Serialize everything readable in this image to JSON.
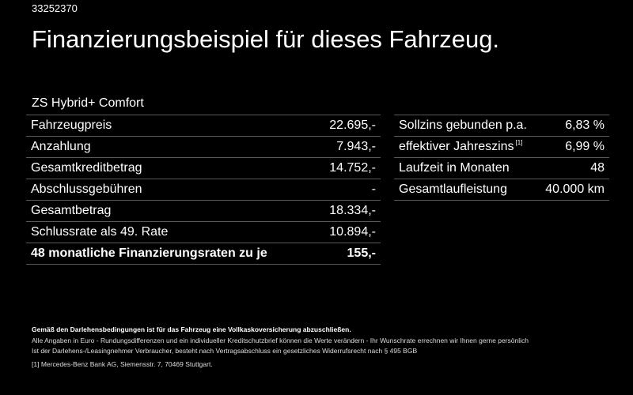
{
  "header": {
    "id": "33252370",
    "title": "Finanzierungsbeispiel für dieses Fahrzeug.",
    "model": "ZS Hybrid+ Comfort"
  },
  "left_table": [
    {
      "label": "Fahrzeugpreis",
      "value": "22.695,-"
    },
    {
      "label": "Anzahlung",
      "value": "7.943,-"
    },
    {
      "label": "Gesamtkreditbetrag",
      "value": "14.752,-"
    },
    {
      "label": "Abschlussgebühren",
      "value": "-"
    },
    {
      "label": "Gesamtbetrag",
      "value": "18.334,-"
    },
    {
      "label": "Schlussrate als 49. Rate",
      "value": "10.894,-"
    },
    {
      "label": "48 monatliche Finanzierungsraten zu je",
      "value": "155,-"
    }
  ],
  "right_table": [
    {
      "label": "Sollzins gebunden p.a.",
      "sup": "",
      "value": "6,83 %"
    },
    {
      "label": "effektiver Jahreszins",
      "sup": "[1]",
      "value": "6,99 %"
    },
    {
      "label": "Laufzeit in Monaten",
      "sup": "",
      "value": "48"
    },
    {
      "label": "Gesamtlaufleistung",
      "sup": "",
      "value": "40.000 km"
    }
  ],
  "footer": {
    "bold_line": "Gemäß den Darlehensbedingungen ist für das Fahrzeug eine Vollkaskoversicherung abzuschließen.",
    "line1": "Alle Angaben in Euro - Rundungsdifferenzen und ein individueller Kreditschutzbrief können die Werte verändern - Ihr Wunschrate errechnen wir Ihnen gerne persönlich",
    "line2": "Ist der Darlehens-/Leasingnehmer Verbraucher, besteht nach Vertragsabschluss ein gesetzliches Widerrufsrecht nach § 495 BGB",
    "footnote_marker": "[1]",
    "footnote": "Mercedes-Benz Bank AG, Siemensstr. 7, 70469 Stuttgart."
  }
}
